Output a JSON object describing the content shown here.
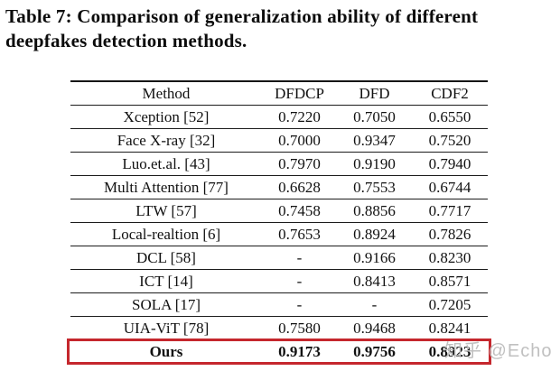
{
  "caption": {
    "lines": [
      "Table 7: Comparison of generalization ability of different",
      "deepfakes detection methods."
    ]
  },
  "table": {
    "columns": [
      "Method",
      "DFDCP",
      "DFD",
      "CDF2"
    ],
    "rows": [
      {
        "method": "Xception [52]",
        "dfdcp": "0.7220",
        "dfd": "0.7050",
        "cdf2": "0.6550",
        "highlight": false
      },
      {
        "method": "Face X-ray [32]",
        "dfdcp": "0.7000",
        "dfd": "0.9347",
        "cdf2": "0.7520",
        "highlight": false
      },
      {
        "method": "Luo.et.al. [43]",
        "dfdcp": "0.7970",
        "dfd": "0.9190",
        "cdf2": "0.7940",
        "highlight": false
      },
      {
        "method": "Multi Attention [77]",
        "dfdcp": "0.6628",
        "dfd": "0.7553",
        "cdf2": "0.6744",
        "highlight": false
      },
      {
        "method": "LTW [57]",
        "dfdcp": "0.7458",
        "dfd": "0.8856",
        "cdf2": "0.7717",
        "highlight": false
      },
      {
        "method": "Local-realtion [6]",
        "dfdcp": "0.7653",
        "dfd": "0.8924",
        "cdf2": "0.7826",
        "highlight": false
      },
      {
        "method": "DCL [58]",
        "dfdcp": "-",
        "dfd": "0.9166",
        "cdf2": "0.8230",
        "highlight": false
      },
      {
        "method": "ICT [14]",
        "dfdcp": "-",
        "dfd": "0.8413",
        "cdf2": "0.8571",
        "highlight": false
      },
      {
        "method": "SOLA [17]",
        "dfdcp": "-",
        "dfd": "-",
        "cdf2": "0.7205",
        "highlight": false
      },
      {
        "method": "UIA-ViT [78]",
        "dfdcp": "0.7580",
        "dfd": "0.9468",
        "cdf2": "0.8241",
        "highlight": false
      },
      {
        "method": "Ours",
        "dfdcp": "0.9173",
        "dfd": "0.9756",
        "cdf2": "0.8923",
        "highlight": true
      }
    ],
    "highlight_color": "#c5272d"
  },
  "watermark": {
    "text": "知乎 @Echo",
    "color": "#c0c0c0"
  },
  "chart_data": {
    "type": "table",
    "title": "Table 7: Comparison of generalization ability of different deepfakes detection methods.",
    "columns": [
      "Method",
      "DFDCP",
      "DFD",
      "CDF2"
    ],
    "rows": [
      [
        "Xception [52]",
        0.722,
        0.705,
        0.655
      ],
      [
        "Face X-ray [32]",
        0.7,
        0.9347,
        0.752
      ],
      [
        "Luo.et.al. [43]",
        0.797,
        0.919,
        0.794
      ],
      [
        "Multi Attention [77]",
        0.6628,
        0.7553,
        0.6744
      ],
      [
        "LTW [57]",
        0.7458,
        0.8856,
        0.7717
      ],
      [
        "Local-realtion [6]",
        0.7653,
        0.8924,
        0.7826
      ],
      [
        "DCL [58]",
        null,
        0.9166,
        0.823
      ],
      [
        "ICT [14]",
        null,
        0.8413,
        0.8571
      ],
      [
        "SOLA [17]",
        null,
        null,
        0.7205
      ],
      [
        "UIA-ViT [78]",
        0.758,
        0.9468,
        0.8241
      ],
      [
        "Ours",
        0.9173,
        0.9756,
        0.8923
      ]
    ],
    "highlighted_row": "Ours"
  }
}
